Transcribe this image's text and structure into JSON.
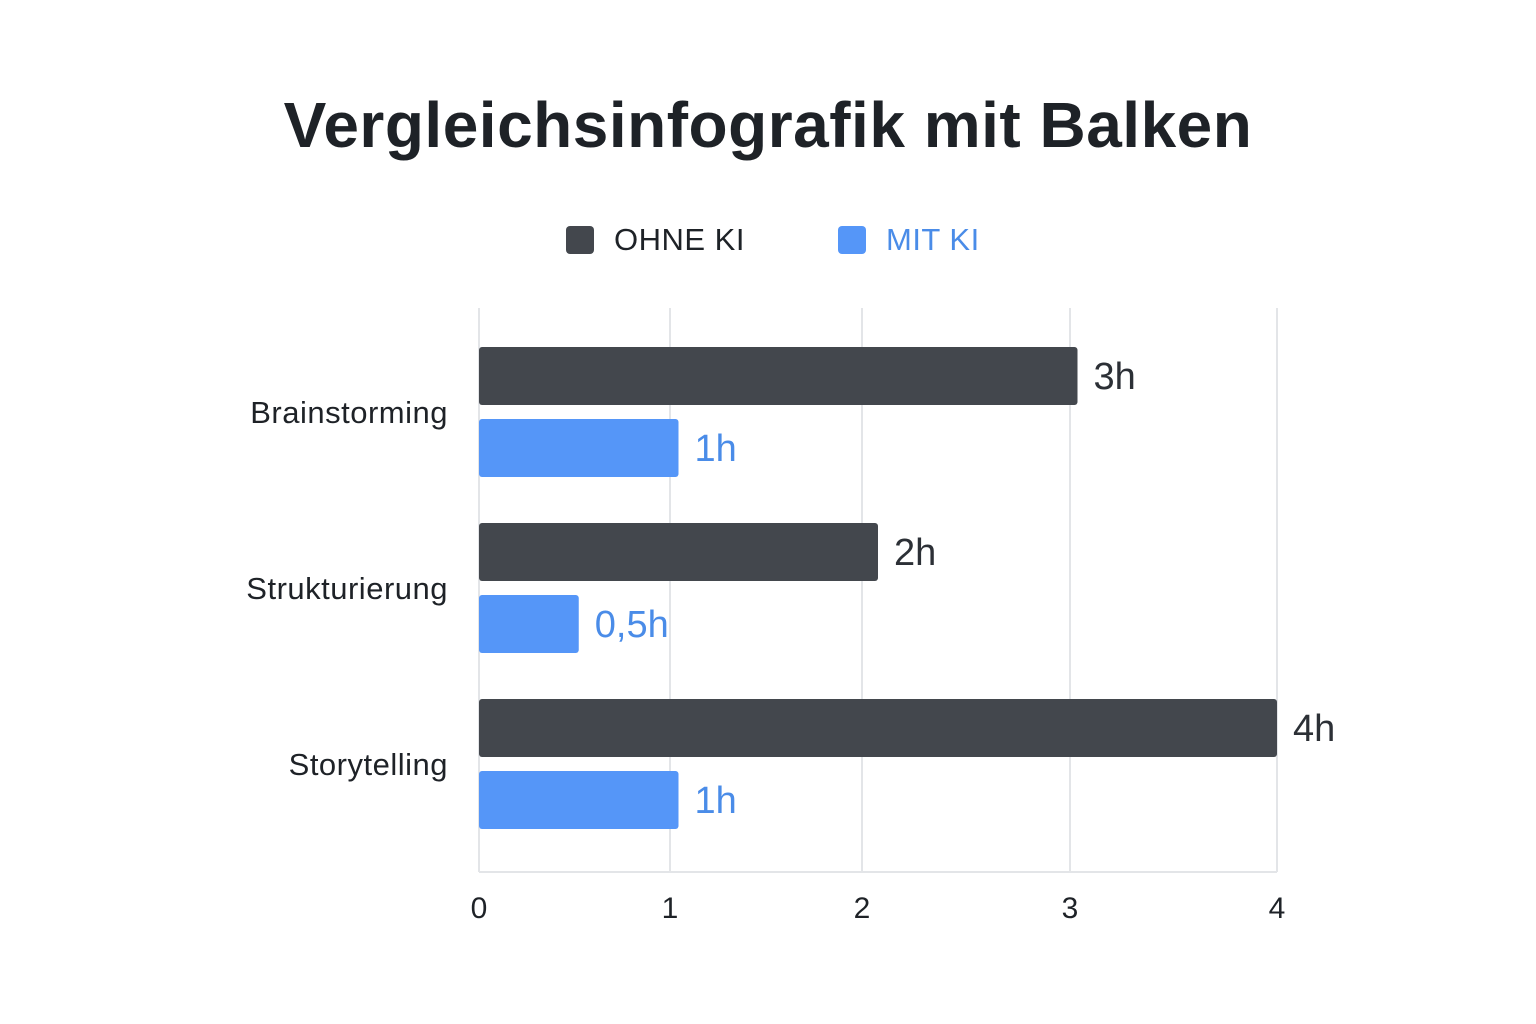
{
  "chart_data": {
    "type": "bar",
    "orientation": "horizontal",
    "title": "Vergleichsinfografik mit Balken",
    "xlabel": "",
    "ylabel": "",
    "categories": [
      "Brainstorming",
      "Strukturierung",
      "Storytelling"
    ],
    "series": [
      {
        "name": "OHNE KI",
        "color": "#43474d",
        "label_color": "#2c3036",
        "values": [
          3,
          2,
          4
        ],
        "labels": [
          "3h",
          "2h",
          "4h"
        ]
      },
      {
        "name": "MIT KI",
        "color": "#5596f8",
        "label_color": "#4a8ce8",
        "values": [
          1,
          0.5,
          1
        ],
        "labels": [
          "1h",
          "0,5h",
          "1h"
        ]
      }
    ],
    "xlim": [
      0,
      4
    ],
    "xticks": [
      "0",
      "1",
      "2",
      "3",
      "4"
    ],
    "grid": true,
    "legend_position": "top-center"
  }
}
